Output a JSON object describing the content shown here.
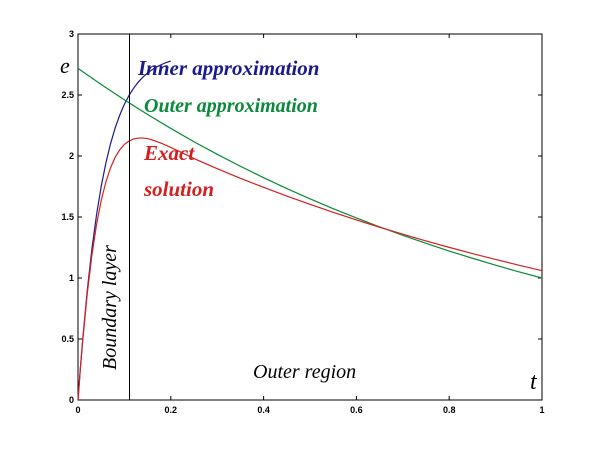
{
  "chart_data": {
    "type": "line",
    "xlim": [
      0,
      1
    ],
    "ylim": [
      0,
      3
    ],
    "x_ticks": [
      "0",
      "0.2",
      "0.4",
      "0.6",
      "0.8",
      "1"
    ],
    "y_ticks": [
      "0",
      "0.5",
      "1",
      "1.5",
      "2",
      "2.5",
      "3"
    ],
    "xlabel": "t",
    "ylabel": "e",
    "grid": false,
    "series": [
      {
        "name": "Inner approximation",
        "color": "#1a1a8c",
        "x": [
          0,
          0.005,
          0.01,
          0.02,
          0.03,
          0.04,
          0.05,
          0.06,
          0.07,
          0.08,
          0.09,
          0.1,
          0.11,
          0.12,
          0.13,
          0.14,
          0.15,
          0.16,
          0.17,
          0.18,
          0.19,
          0.2
        ],
        "y": [
          0,
          0.255,
          0.489,
          0.899,
          1.239,
          1.519,
          1.751,
          1.942,
          2.099,
          2.229,
          2.336,
          2.424,
          2.497,
          2.557,
          2.606,
          2.647,
          2.681,
          2.708,
          2.731,
          2.75,
          2.766,
          2.778
        ]
      },
      {
        "name": "Outer approximation",
        "color": "#0a8a3a",
        "x": [
          0,
          0.05,
          0.1,
          0.15,
          0.2,
          0.25,
          0.3,
          0.35,
          0.4,
          0.45,
          0.5,
          0.55,
          0.6,
          0.65,
          0.7,
          0.75,
          0.8,
          0.85,
          0.9,
          0.95,
          1.0
        ],
        "y": [
          2.718,
          2.586,
          2.46,
          2.34,
          2.226,
          2.117,
          2.014,
          1.916,
          1.822,
          1.733,
          1.649,
          1.568,
          1.492,
          1.419,
          1.35,
          1.284,
          1.221,
          1.162,
          1.105,
          1.051,
          1.0
        ]
      },
      {
        "name": "Exact solution",
        "color": "#d42020",
        "x": [
          0,
          0.005,
          0.01,
          0.02,
          0.03,
          0.04,
          0.05,
          0.06,
          0.07,
          0.08,
          0.09,
          0.1,
          0.11,
          0.12,
          0.13,
          0.14,
          0.15,
          0.16,
          0.18,
          0.2,
          0.22,
          0.25,
          0.3,
          0.35,
          0.4,
          0.45,
          0.5,
          0.55,
          0.6,
          0.65,
          0.7,
          0.75,
          0.8,
          0.85,
          0.9,
          0.95,
          1.0
        ],
        "y": [
          0,
          0.252,
          0.481,
          0.874,
          1.189,
          1.439,
          1.635,
          1.786,
          1.902,
          1.989,
          2.051,
          2.095,
          2.123,
          2.14,
          2.147,
          2.147,
          2.142,
          2.132,
          2.104,
          2.07,
          2.034,
          1.979,
          1.896,
          1.817,
          1.743,
          1.672,
          1.604,
          1.538,
          1.476,
          1.416,
          1.359,
          1.304,
          1.251,
          1.2,
          1.152,
          1.105,
          1.06
        ]
      }
    ],
    "vline": {
      "x": 0.111
    },
    "annotations": {
      "inner": "Inner approximation",
      "outer": "Outer approximation",
      "exact_line1": "Exact",
      "exact_line2": "solution",
      "boundary": "Boundary layer",
      "outer_region": "Outer region"
    }
  }
}
